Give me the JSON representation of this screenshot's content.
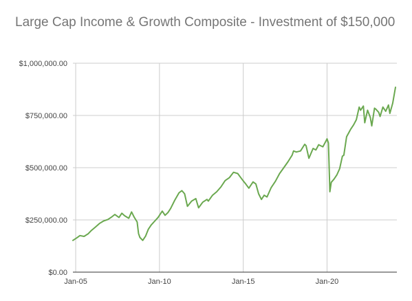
{
  "chart_data": {
    "type": "line",
    "title": "Large Cap Income & Growth Composite - Investment of $150,000",
    "xlabel": "",
    "ylabel": "",
    "ylim": [
      0,
      1000000
    ],
    "y_ticks": [
      {
        "value": 0,
        "label": "$0.00"
      },
      {
        "value": 250000,
        "label": "$250,000.00"
      },
      {
        "value": 500000,
        "label": "$500,000.00"
      },
      {
        "value": 750000,
        "label": "$750,000.00"
      },
      {
        "value": 1000000,
        "label": "$1,000,000.00"
      }
    ],
    "xlim": [
      "2004-11",
      "2024-03"
    ],
    "x_ticks": [
      {
        "value": "2005-01",
        "label": "Jan-05"
      },
      {
        "value": "2010-01",
        "label": "Jan-10"
      },
      {
        "value": "2015-01",
        "label": "Jan-15"
      },
      {
        "value": "2020-01",
        "label": "Jan-20"
      }
    ],
    "grid": true,
    "legend": "none",
    "colors": {
      "line": "#6aa84f",
      "grid": "#cccccc",
      "axis": "#333333"
    },
    "series": [
      {
        "x": [
          "2004-11",
          "2005-02",
          "2005-04",
          "2005-07",
          "2005-10",
          "2005-12",
          "2006-03",
          "2006-06",
          "2006-09",
          "2006-12",
          "2007-03",
          "2007-05",
          "2007-08",
          "2007-10",
          "2007-12",
          "2008-03",
          "2008-05",
          "2008-07",
          "2008-09",
          "2008-10",
          "2008-11",
          "2009-01",
          "2009-03",
          "2009-05",
          "2009-07",
          "2009-09",
          "2009-12",
          "2010-03",
          "2010-05",
          "2010-07",
          "2010-09",
          "2010-12",
          "2011-03",
          "2011-05",
          "2011-07",
          "2011-09",
          "2011-12",
          "2012-03",
          "2012-05",
          "2012-08",
          "2012-11",
          "2012-12",
          "2013-03",
          "2013-06",
          "2013-09",
          "2013-12",
          "2014-03",
          "2014-06",
          "2014-09",
          "2014-12",
          "2015-03",
          "2015-05",
          "2015-08",
          "2015-10",
          "2015-12",
          "2016-02",
          "2016-04",
          "2016-06",
          "2016-09",
          "2016-12",
          "2017-03",
          "2017-06",
          "2017-09",
          "2017-12",
          "2018-01",
          "2018-03",
          "2018-06",
          "2018-09",
          "2018-10",
          "2018-12",
          "2019-03",
          "2019-05",
          "2019-07",
          "2019-10",
          "2019-12",
          "2020-01",
          "2020-02",
          "2020-03",
          "2020-04",
          "2020-06",
          "2020-08",
          "2020-10",
          "2020-12",
          "2021-01",
          "2021-03",
          "2021-06",
          "2021-08",
          "2021-10",
          "2021-12",
          "2022-01",
          "2022-03",
          "2022-04",
          "2022-06",
          "2022-08",
          "2022-09",
          "2022-11",
          "2022-12",
          "2023-02",
          "2023-03",
          "2023-05",
          "2023-07",
          "2023-09",
          "2023-10",
          "2023-12",
          "2024-02"
        ],
        "values": [
          152000,
          165000,
          175000,
          171000,
          184000,
          198000,
          215000,
          233000,
          245000,
          252000,
          265000,
          276000,
          262000,
          282000,
          270000,
          258000,
          288000,
          262000,
          240000,
          185000,
          166000,
          152000,
          172000,
          205000,
          225000,
          240000,
          262000,
          292000,
          272000,
          285000,
          305000,
          345000,
          380000,
          390000,
          375000,
          315000,
          340000,
          352000,
          308000,
          335000,
          348000,
          340000,
          368000,
          385000,
          408000,
          438000,
          452000,
          478000,
          472000,
          445000,
          420000,
          402000,
          432000,
          422000,
          375000,
          348000,
          368000,
          360000,
          405000,
          435000,
          472000,
          500000,
          528000,
          560000,
          580000,
          575000,
          580000,
          612000,
          605000,
          545000,
          592000,
          585000,
          610000,
          600000,
          625000,
          638000,
          618000,
          385000,
          430000,
          445000,
          465000,
          495000,
          555000,
          560000,
          648000,
          685000,
          705000,
          730000,
          790000,
          775000,
          795000,
          715000,
          775000,
          740000,
          700000,
          785000,
          780000,
          765000,
          745000,
          790000,
          770000,
          800000,
          760000,
          808000,
          885000
        ]
      }
    ]
  }
}
